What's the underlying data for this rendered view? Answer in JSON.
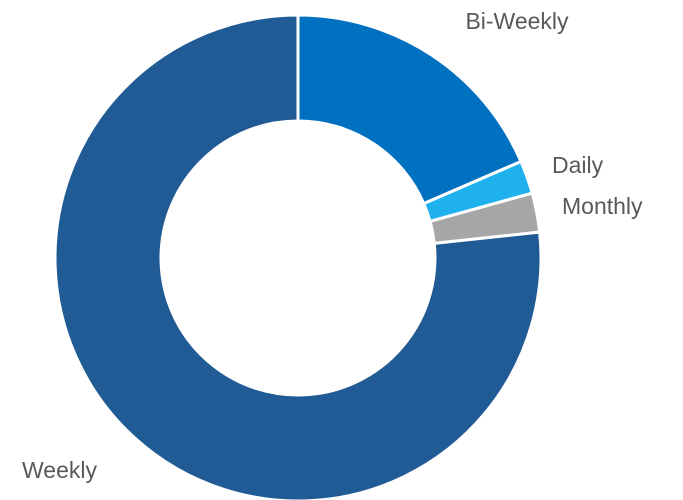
{
  "chart_data": {
    "type": "donut",
    "categories": [
      "Bi-Weekly",
      "Daily",
      "Monthly",
      "Weekly"
    ],
    "values": [
      18.5,
      2.2,
      2.6,
      76.7
    ],
    "colors": [
      "#0070c0",
      "#1fb1ee",
      "#a6a6a6",
      "#215b95"
    ]
  }
}
